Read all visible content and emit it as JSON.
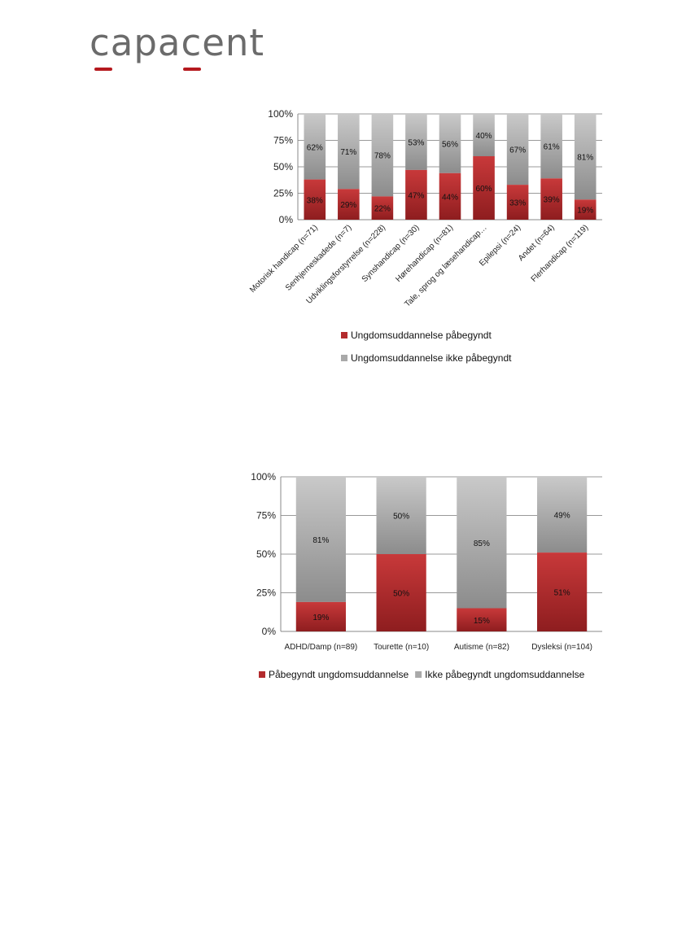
{
  "logo": {
    "text": "capacent"
  },
  "colors": {
    "accent": "#b5191e",
    "bar_red": "#b32b2d",
    "bar_grey": "#b9b9b9",
    "logo_text": "#6b6b6b"
  },
  "chart_data": [
    {
      "type": "bar",
      "stacked": true,
      "title": "",
      "xlabel": "",
      "ylabel": "",
      "ylim": [
        0,
        100
      ],
      "yticks": [
        "0%",
        "25%",
        "50%",
        "75%",
        "100%"
      ],
      "grid": true,
      "legend_position": "bottom",
      "categories": [
        "Motorisk handicap (n=71)",
        "Senhjerneskadede (n=7)",
        "Udviklingsforstyrrelse (n=228)",
        "Synshandicap (n=30)",
        "Hørehandicap (n=81)",
        "Tale, sprog og læsehandicap…",
        "Epilepsi (n=24)",
        "Andet (n=64)",
        "Flerhandicap (n=119)"
      ],
      "series": [
        {
          "name": "Ungdomsuddannelse påbegyndt",
          "values": [
            38,
            29,
            22,
            47,
            44,
            60,
            33,
            39,
            19
          ],
          "labels": [
            "38%",
            "29%",
            "22%",
            "47%",
            "44%",
            "60%",
            "33%",
            "39%",
            "19%"
          ]
        },
        {
          "name": "Ungdomsuddannelse ikke påbegyndt",
          "values": [
            62,
            71,
            78,
            53,
            56,
            40,
            67,
            61,
            81
          ],
          "labels": [
            "62%",
            "71%",
            "78%",
            "53%",
            "56%",
            "40%",
            "67%",
            "61%",
            "81%"
          ]
        }
      ]
    },
    {
      "type": "bar",
      "stacked": true,
      "title": "",
      "xlabel": "",
      "ylabel": "",
      "ylim": [
        0,
        100
      ],
      "yticks": [
        "0%",
        "25%",
        "50%",
        "75%",
        "100%"
      ],
      "grid": true,
      "legend_position": "bottom",
      "categories": [
        "ADHD/Damp (n=89)",
        "Tourette (n=10)",
        "Autisme (n=82)",
        "Dysleksi (n=104)"
      ],
      "series": [
        {
          "name": "Påbegyndt ungdomsuddannelse",
          "values": [
            19,
            50,
            15,
            51
          ],
          "labels": [
            "19%",
            "50%",
            "15%",
            "51%"
          ]
        },
        {
          "name": "Ikke påbegyndt ungdomsuddannelse",
          "values": [
            81,
            50,
            85,
            49
          ],
          "labels": [
            "81%",
            "50%",
            "85%",
            "49%"
          ]
        }
      ]
    }
  ]
}
